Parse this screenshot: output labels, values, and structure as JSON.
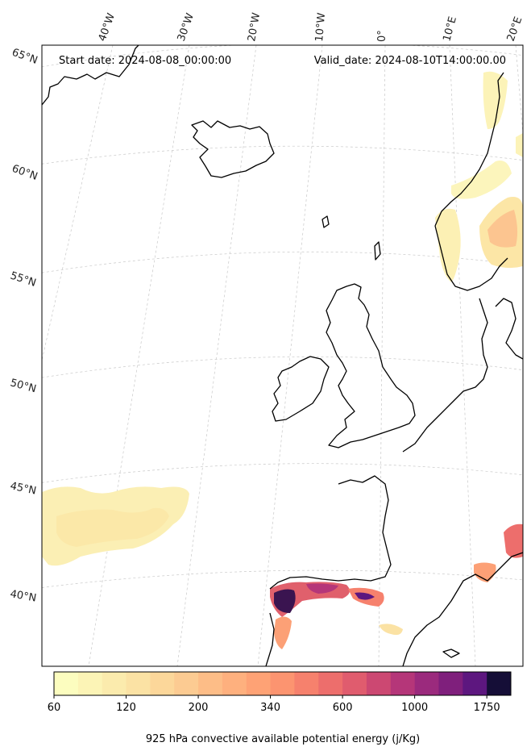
{
  "header": {
    "start_date": "Start date: 2024-08-08_00:00:00",
    "valid_date": "Valid_date: 2024-08-10T14:00:00.00"
  },
  "longitude_labels": [
    "40°W",
    "30°W",
    "20°W",
    "10°W",
    "0°",
    "10°E",
    "20°E"
  ],
  "latitude_labels": [
    "65°N",
    "60°N",
    "55°N",
    "50°N",
    "45°N",
    "40°N"
  ],
  "colorbar": {
    "title": "925 hPa convective available potential energy (j/Kg)",
    "tick_labels": [
      "60",
      "120",
      "200",
      "340",
      "600",
      "1000",
      "1750"
    ],
    "colors": [
      "#fcfdbf",
      "#fcf4b6",
      "#fbebad",
      "#fbe2a4",
      "#fcd79a",
      "#fccb92",
      "#fdbd87",
      "#feb07e",
      "#fea275",
      "#fc9470",
      "#f6816d",
      "#ed6e6c",
      "#e05c6e",
      "#cc4872",
      "#b53679",
      "#9b2a7d",
      "#7f1f7c",
      "#5d177f",
      "#150e37"
    ]
  },
  "map": {
    "projection": "Lambert conformal",
    "coastline_color": "#000000",
    "gridline_color": "#bbbbbb"
  }
}
